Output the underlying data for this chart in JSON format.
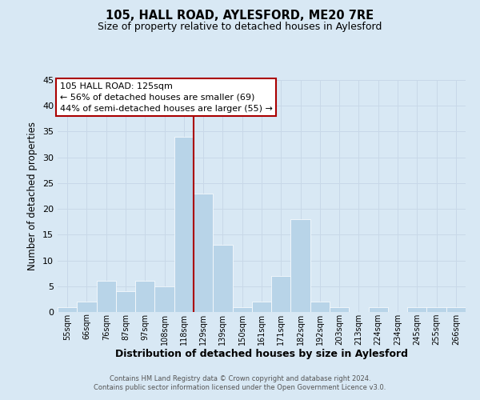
{
  "title": "105, HALL ROAD, AYLESFORD, ME20 7RE",
  "subtitle": "Size of property relative to detached houses in Aylesford",
  "xlabel": "Distribution of detached houses by size in Aylesford",
  "ylabel": "Number of detached properties",
  "bin_labels": [
    "55sqm",
    "66sqm",
    "76sqm",
    "87sqm",
    "97sqm",
    "108sqm",
    "118sqm",
    "129sqm",
    "139sqm",
    "150sqm",
    "161sqm",
    "171sqm",
    "182sqm",
    "192sqm",
    "203sqm",
    "213sqm",
    "224sqm",
    "234sqm",
    "245sqm",
    "255sqm",
    "266sqm"
  ],
  "bin_values": [
    1,
    2,
    6,
    4,
    6,
    5,
    34,
    23,
    13,
    1,
    2,
    7,
    18,
    2,
    1,
    0,
    1,
    0,
    1,
    1,
    1
  ],
  "bar_color": "#b8d4e8",
  "bar_edge_color": "#b8d4e8",
  "vline_color": "#aa0000",
  "ylim": [
    0,
    45
  ],
  "yticks": [
    0,
    5,
    10,
    15,
    20,
    25,
    30,
    35,
    40,
    45
  ],
  "annotation_title": "105 HALL ROAD: 125sqm",
  "annotation_line1": "← 56% of detached houses are smaller (69)",
  "annotation_line2": "44% of semi-detached houses are larger (55) →",
  "annotation_box_color": "#ffffff",
  "annotation_box_edge": "#aa0000",
  "grid_color": "#c8d8e8",
  "background_color": "#d8e8f4",
  "plot_bg_color": "#ddeeff",
  "footer_line1": "Contains HM Land Registry data © Crown copyright and database right 2024.",
  "footer_line2": "Contains public sector information licensed under the Open Government Licence v3.0."
}
